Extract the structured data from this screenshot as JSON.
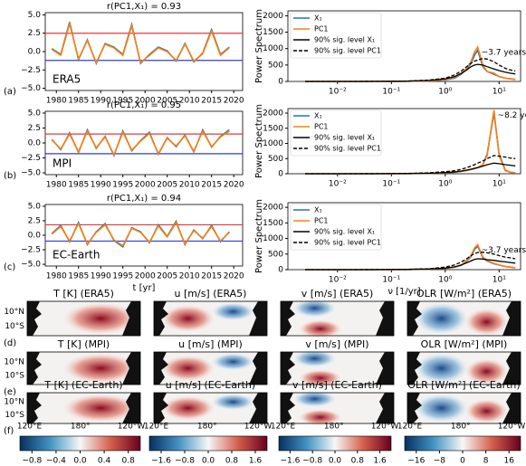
{
  "chart_data": [
    {
      "type": "line",
      "title": "r(PC1,X₁) = 0.93",
      "panel_label": "(a)",
      "annotation": "ERA5",
      "x": [
        1979,
        1981,
        1983,
        1985,
        1987,
        1989,
        1991,
        1993,
        1995,
        1997,
        1999,
        2001,
        2003,
        2005,
        2007,
        2009,
        2011,
        2013,
        2015,
        2017,
        2019
      ],
      "series": [
        {
          "name": "X₁",
          "color": "#1f77b4",
          "values": [
            0.4,
            -0.4,
            4.0,
            -1.1,
            1.6,
            -1.6,
            1.1,
            0.6,
            -0.4,
            3.7,
            -1.6,
            -0.4,
            0.6,
            0.1,
            -1.3,
            1.1,
            -1.4,
            -0.2,
            3.0,
            -0.4,
            0.6
          ]
        },
        {
          "name": "PC1",
          "color": "#ff7f0e",
          "values": [
            0.3,
            -0.5,
            3.8,
            -1.0,
            1.5,
            -1.5,
            1.0,
            0.5,
            -0.5,
            3.5,
            -1.5,
            -0.5,
            0.5,
            0.0,
            -1.2,
            1.0,
            -1.3,
            -0.3,
            2.8,
            -0.5,
            0.5
          ]
        }
      ],
      "hlines": [
        {
          "value": 2.5,
          "color": "#e03a3a"
        },
        {
          "value": -1.2,
          "color": "#2b3fd6"
        }
      ],
      "xlim": [
        1977.5,
        2022
      ],
      "ylim": [
        -5.3,
        5.3
      ],
      "xticks": [
        1980,
        1985,
        1990,
        1995,
        2000,
        2005,
        2010,
        2015,
        2020
      ],
      "yticks": [
        {
          "value": -5,
          "label": "−5.0"
        },
        {
          "value": -2.5,
          "label": "−2.5"
        },
        {
          "value": 0,
          "label": "0.0"
        },
        2.5,
        {
          "value": 5,
          "label": "5.0"
        }
      ]
    },
    {
      "type": "line",
      "xscale": "log",
      "ylabel": "Power Spectrum",
      "annotation": "~3.7 years",
      "legend": "upper left",
      "x": [
        0.0025,
        0.005,
        0.01,
        0.02,
        0.05,
        0.1,
        0.2,
        0.5,
        1,
        1.5,
        2,
        2.5,
        3,
        3.5,
        4,
        5,
        6,
        8,
        10,
        13,
        16,
        20
      ],
      "series": [
        {
          "name": "X₁",
          "color": "#1f77b4",
          "values": [
            0,
            0,
            0,
            0,
            0,
            2,
            5,
            20,
            50,
            100,
            230,
            380,
            550,
            800,
            950,
            450,
            300,
            220,
            150,
            100,
            80,
            60
          ]
        },
        {
          "name": "PC1",
          "color": "#ff7f0e",
          "values": [
            0,
            0,
            0,
            0,
            0,
            2,
            5,
            20,
            60,
            120,
            250,
            400,
            600,
            900,
            1050,
            500,
            300,
            250,
            150,
            100,
            80,
            60
          ]
        },
        {
          "name": "90% sig. level X₁",
          "color": "#000000",
          "dash": false,
          "values": [
            0,
            0,
            0,
            0,
            2,
            5,
            10,
            30,
            80,
            150,
            250,
            350,
            450,
            500,
            520,
            500,
            450,
            380,
            330,
            280,
            250,
            230
          ]
        },
        {
          "name": "90% sig. level PC1",
          "color": "#000000",
          "dash": true,
          "values": [
            0,
            0,
            0,
            0,
            2,
            5,
            10,
            40,
            100,
            200,
            320,
            450,
            550,
            620,
            650,
            700,
            680,
            600,
            500,
            400,
            350,
            320
          ]
        }
      ],
      "xlim": [
        0.0012,
        25
      ],
      "ylim": [
        0,
        2150
      ],
      "xticks": [
        {
          "value": 0.01,
          "label": "10⁻²"
        },
        {
          "value": 0.1,
          "label": "10⁻¹"
        },
        {
          "value": 1,
          "label": "10⁰"
        },
        {
          "value": 10,
          "label": "10¹"
        }
      ],
      "yticks": [
        0,
        500,
        1000,
        1500,
        2000
      ]
    },
    {
      "type": "line",
      "title": "r(PC1,X₁) = 0.95",
      "panel_label": "(b)",
      "annotation": "MPI",
      "x": [
        1979,
        1981,
        1983,
        1985,
        1987,
        1989,
        1991,
        1993,
        1995,
        1997,
        1999,
        2001,
        2003,
        2005,
        2007,
        2009,
        2011,
        2013,
        2015,
        2017,
        2019
      ],
      "series": [
        {
          "name": "X₁",
          "color": "#1f77b4",
          "values": [
            0.6,
            -1.1,
            1.7,
            -1.6,
            2.2,
            -0.9,
            1.1,
            -2.1,
            2.0,
            -1.3,
            0.4,
            1.8,
            -1.9,
            0.9,
            -0.6,
            1.3,
            -1.5,
            2.2,
            -0.7,
            1.1,
            2.2
          ]
        },
        {
          "name": "PC1",
          "color": "#ff7f0e",
          "values": [
            0.5,
            -1.0,
            1.5,
            -1.5,
            2.0,
            -0.8,
            1.0,
            -2.0,
            1.8,
            -1.2,
            0.3,
            1.6,
            -1.8,
            0.8,
            -0.5,
            1.2,
            -1.4,
            2.0,
            -0.6,
            1.0,
            2.0
          ]
        }
      ],
      "hlines": [
        {
          "value": 1.5,
          "color": "#e03a3a"
        },
        {
          "value": -1.8,
          "color": "#2b3fd6"
        }
      ],
      "xlim": [
        1977.5,
        2022
      ],
      "ylim": [
        -5.3,
        5.3
      ],
      "xticks": [
        1980,
        1985,
        1990,
        1995,
        2000,
        2005,
        2010,
        2015,
        2020
      ],
      "yticks": [
        {
          "value": -5,
          "label": "−5.0"
        },
        {
          "value": -2.5,
          "label": "−2.5"
        },
        {
          "value": 0,
          "label": "0.0"
        },
        2.5,
        {
          "value": 5,
          "label": "5.0"
        }
      ]
    },
    {
      "type": "line",
      "xscale": "log",
      "ylabel": "Power Spectrum",
      "annotation": "~8.2 years",
      "legend": "upper left",
      "x": [
        0.0025,
        0.005,
        0.01,
        0.02,
        0.05,
        0.1,
        0.2,
        0.5,
        1,
        1.5,
        2,
        2.5,
        3,
        3.5,
        4,
        5,
        6,
        8,
        10,
        13,
        16,
        20
      ],
      "series": [
        {
          "name": "X₁",
          "color": "#1f77b4",
          "values": [
            0,
            0,
            0,
            0,
            0,
            2,
            5,
            15,
            30,
            50,
            80,
            110,
            140,
            170,
            200,
            300,
            650,
            2000,
            650,
            120,
            50,
            30
          ]
        },
        {
          "name": "PC1",
          "color": "#ff7f0e",
          "values": [
            0,
            0,
            0,
            0,
            0,
            2,
            5,
            15,
            30,
            50,
            80,
            110,
            140,
            170,
            200,
            300,
            600,
            2100,
            600,
            100,
            50,
            30
          ]
        },
        {
          "name": "90% sig. level X₁",
          "color": "#000000",
          "dash": false,
          "values": [
            0,
            0,
            0,
            0,
            1,
            3,
            6,
            15,
            40,
            60,
            90,
            120,
            150,
            180,
            200,
            250,
            300,
            350,
            330,
            300,
            280,
            260
          ]
        },
        {
          "name": "90% sig. level PC1",
          "color": "#000000",
          "dash": true,
          "values": [
            0,
            0,
            0,
            0,
            2,
            5,
            10,
            30,
            70,
            100,
            150,
            200,
            250,
            300,
            350,
            420,
            500,
            600,
            580,
            550,
            520,
            500
          ]
        }
      ],
      "xlim": [
        0.0012,
        25
      ],
      "ylim": [
        0,
        2150
      ],
      "xticks": [
        {
          "value": 0.01,
          "label": "10⁻²"
        },
        {
          "value": 0.1,
          "label": "10⁻¹"
        },
        {
          "value": 1,
          "label": "10⁰"
        },
        {
          "value": 10,
          "label": "10¹"
        }
      ],
      "yticks": [
        0,
        500,
        1000,
        1500,
        2000
      ]
    },
    {
      "type": "line",
      "title": "r(PC1,X₁) = 0.94",
      "panel_label": "(c)",
      "annotation": "EC-Earth",
      "xlabel": "t [yr]",
      "x": [
        1979,
        1981,
        1983,
        1985,
        1987,
        1989,
        1991,
        1993,
        1995,
        1997,
        1999,
        2001,
        2003,
        2005,
        2007,
        2009,
        2011,
        2013,
        2015,
        2017,
        2019
      ],
      "series": [
        {
          "name": "X₁",
          "color": "#1f77b4",
          "values": [
            0.3,
            1.7,
            -1.1,
            2.2,
            -1.6,
            0.6,
            2.0,
            -0.9,
            -2.0,
            1.3,
            0.6,
            -1.3,
            1.8,
            -0.2,
            2.4,
            -1.6,
            0.9,
            -0.6,
            1.7,
            -1.1,
            0.6
          ]
        },
        {
          "name": "PC1",
          "color": "#ff7f0e",
          "values": [
            0.2,
            1.5,
            -1.0,
            2.0,
            -1.5,
            0.5,
            1.8,
            -0.8,
            -1.8,
            1.2,
            0.5,
            -1.2,
            1.6,
            -0.3,
            2.2,
            -1.5,
            0.8,
            -0.5,
            1.5,
            -1.0,
            0.5
          ]
        }
      ],
      "hlines": [
        {
          "value": 1.8,
          "color": "#e03a3a"
        },
        {
          "value": -1.0,
          "color": "#2b3fd6"
        }
      ],
      "xlim": [
        1977.5,
        2022
      ],
      "ylim": [
        -5.3,
        5.3
      ],
      "xticks": [
        1980,
        1985,
        1990,
        1995,
        2000,
        2005,
        2010,
        2015,
        2020
      ],
      "yticks": [
        {
          "value": -5,
          "label": "−5.0"
        },
        {
          "value": -2.5,
          "label": "−2.5"
        },
        {
          "value": 0,
          "label": "0.0"
        },
        2.5,
        {
          "value": 5,
          "label": "5.0"
        }
      ]
    },
    {
      "type": "line",
      "xscale": "log",
      "ylabel": "Power Spectrum",
      "annotation": "~3.7 years",
      "legend": "upper left",
      "xlabel": "ν [1/yr]",
      "x": [
        0.0025,
        0.005,
        0.01,
        0.02,
        0.05,
        0.1,
        0.2,
        0.5,
        1,
        1.5,
        2,
        2.5,
        3,
        3.5,
        4,
        5,
        6,
        8,
        10,
        13,
        16,
        20
      ],
      "series": [
        {
          "name": "X₁",
          "color": "#1f77b4",
          "values": [
            0,
            0,
            0,
            0,
            0,
            2,
            5,
            15,
            40,
            80,
            140,
            280,
            420,
            650,
            750,
            380,
            280,
            190,
            150,
            100,
            80,
            60
          ]
        },
        {
          "name": "PC1",
          "color": "#ff7f0e",
          "values": [
            0,
            0,
            0,
            0,
            0,
            2,
            5,
            15,
            40,
            80,
            150,
            300,
            450,
            700,
            800,
            400,
            300,
            200,
            150,
            100,
            80,
            60
          ]
        },
        {
          "name": "90% sig. level X₁",
          "color": "#000000",
          "dash": false,
          "values": [
            0,
            0,
            0,
            0,
            1,
            3,
            8,
            20,
            50,
            90,
            150,
            220,
            280,
            330,
            350,
            340,
            320,
            300,
            270,
            250,
            230,
            210
          ]
        },
        {
          "name": "90% sig. level PC1",
          "color": "#000000",
          "dash": true,
          "values": [
            0,
            0,
            0,
            0,
            2,
            5,
            10,
            30,
            80,
            150,
            250,
            350,
            450,
            520,
            550,
            560,
            540,
            500,
            450,
            400,
            380,
            350
          ]
        }
      ],
      "xlim": [
        0.0012,
        25
      ],
      "ylim": [
        0,
        2150
      ],
      "xticks": [
        {
          "value": 0.01,
          "label": "10⁻²"
        },
        {
          "value": 0.1,
          "label": "10⁻¹"
        },
        {
          "value": 1,
          "label": "10⁰"
        },
        {
          "value": 10,
          "label": "10¹"
        }
      ],
      "yticks": [
        0,
        500,
        1000,
        1500,
        2000
      ]
    }
  ],
  "maps": {
    "row_labels": [
      "(d)",
      "(e)",
      "(f)"
    ],
    "titles": [
      [
        "T [K] (ERA5)",
        "u [m/s] (ERA5)",
        "v [m/s] (ERA5)",
        "OLR [W/m²] (ERA5)"
      ],
      [
        "T [K] (MPI)",
        "u [m/s] (MPI)",
        "v [m/s] (MPI)",
        "OLR [W/m²] (MPI)"
      ],
      [
        "T [K] (EC-Earth)",
        "u [m/s] (EC-Earth)",
        "v [m/s] (EC-Earth)",
        "OLR [W/m²] (EC-Earth)"
      ]
    ],
    "yticks": [
      "10°N",
      "10°S"
    ],
    "xticks": [
      "120°E",
      "180°",
      "120°W"
    ]
  },
  "colorbars": [
    {
      "lim": [
        -1,
        1
      ],
      "ticks": [
        {
          "value": -0.8,
          "label": "−0.8"
        },
        {
          "value": -0.4,
          "label": "−0.4"
        },
        {
          "value": 0,
          "label": "0.0"
        },
        0.4,
        0.8
      ]
    },
    {
      "lim": [
        -2,
        2
      ],
      "ticks": [
        {
          "value": -1.6,
          "label": "−1.6"
        },
        {
          "value": -0.8,
          "label": "−0.8"
        },
        {
          "value": 0,
          "label": "0.0"
        },
        0.8,
        1.6
      ]
    },
    {
      "lim": [
        -2,
        2
      ],
      "ticks": [
        {
          "value": -1.6,
          "label": "−1.6"
        },
        {
          "value": -0.8,
          "label": "−0.8"
        },
        {
          "value": 0,
          "label": "0.0"
        },
        0.8,
        1.6
      ]
    },
    {
      "lim": [
        -20,
        20
      ],
      "ticks": [
        {
          "value": -16,
          "label": "−16"
        },
        {
          "value": -8,
          "label": "−8"
        },
        0,
        8,
        16
      ]
    }
  ]
}
